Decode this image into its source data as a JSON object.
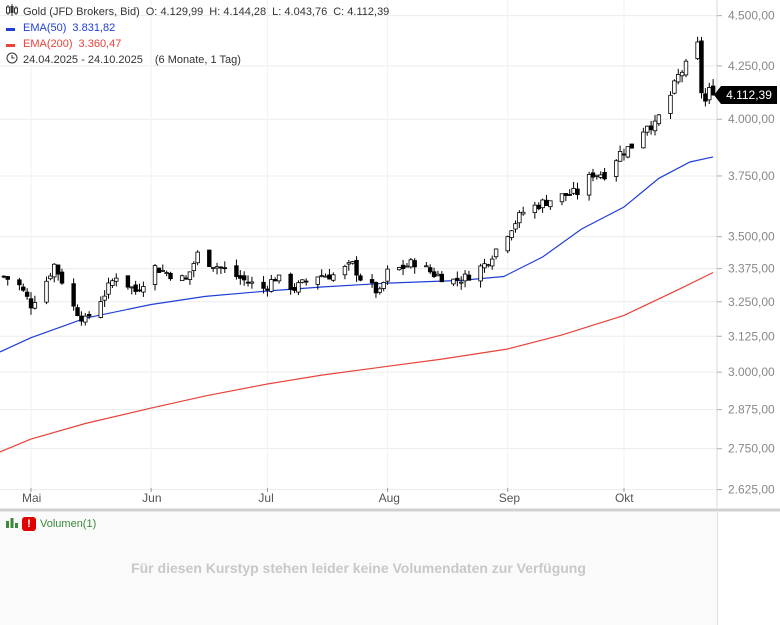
{
  "legend": {
    "instrument": "Gold (JFD Brokers, Bid)",
    "open_label": "O:",
    "open": "4.129,99",
    "high_label": "H:",
    "high": "4.144,28",
    "low_label": "L:",
    "low": "4.043,76",
    "close_label": "C:",
    "close": "4.112,39",
    "ema50_label": "EMA(50)",
    "ema50_value": "3.831,82",
    "ema200_label": "EMA(200)",
    "ema200_value": "3.360,47",
    "period": "24.04.2025 - 24.10.2025",
    "period_note": "(6 Monate, 1 Tag)"
  },
  "colors": {
    "ema50": "#1f3fd6",
    "ema200": "#e8433a",
    "candle": "#000000",
    "grid": "#ececec",
    "volume_green": "#3a8a3a"
  },
  "icons": {
    "candles": "candlestick-icon",
    "clock": "clock-icon",
    "volume": "bar-chart-icon",
    "warning": "exclamation-icon"
  },
  "last_price_badge": "4.112,39",
  "volume_pane": {
    "label": "Volumen(1)",
    "message": "Für diesen Kurstyp stehen leider keine Volumendaten zur Verfügung"
  },
  "chart_data": {
    "type": "candlestick",
    "y_scale": "log",
    "ylim": [
      2600,
      4560
    ],
    "xlim": [
      "2025-04-23",
      "2025-10-25"
    ],
    "y_ticks": [
      {
        "value": 4500,
        "label": "4.500,00"
      },
      {
        "value": 4250,
        "label": "4.250,00"
      },
      {
        "value": 4000,
        "label": "4.000,00"
      },
      {
        "value": 3750,
        "label": "3.750,00"
      },
      {
        "value": 3500,
        "label": "3.500,00"
      },
      {
        "value": 3375,
        "label": "3.375,00"
      },
      {
        "value": 3250,
        "label": "3.250,00"
      },
      {
        "value": 3125,
        "label": "3.125,00"
      },
      {
        "value": 3000,
        "label": "3.000,00"
      },
      {
        "value": 2875,
        "label": "2.875,00"
      },
      {
        "value": 2750,
        "label": "2.750,00"
      },
      {
        "value": 2625,
        "label": "2.625,00"
      }
    ],
    "x_ticks": [
      {
        "date": "2025-05-01",
        "label": "Mai"
      },
      {
        "date": "2025-06-01",
        "label": "Jun"
      },
      {
        "date": "2025-07-01",
        "label": "Jul"
      },
      {
        "date": "2025-08-01",
        "label": "Aug"
      },
      {
        "date": "2025-09-01",
        "label": "Sep"
      },
      {
        "date": "2025-10-01",
        "label": "Okt"
      }
    ],
    "close_keypoints": [
      [
        "2025-04-24",
        3345
      ],
      [
        "2025-04-28",
        3310
      ],
      [
        "2025-05-01",
        3240
      ],
      [
        "2025-05-05",
        3330
      ],
      [
        "2025-05-07",
        3390
      ],
      [
        "2025-05-09",
        3330
      ],
      [
        "2025-05-12",
        3230
      ],
      [
        "2025-05-15",
        3180
      ],
      [
        "2025-05-20",
        3280
      ],
      [
        "2025-05-23",
        3350
      ],
      [
        "2025-05-28",
        3290
      ],
      [
        "2025-06-02",
        3380
      ],
      [
        "2025-06-05",
        3360
      ],
      [
        "2025-06-10",
        3330
      ],
      [
        "2025-06-13",
        3430
      ],
      [
        "2025-06-16",
        3400
      ],
      [
        "2025-06-20",
        3370
      ],
      [
        "2025-06-25",
        3330
      ],
      [
        "2025-06-30",
        3300
      ],
      [
        "2025-07-03",
        3340
      ],
      [
        "2025-07-08",
        3300
      ],
      [
        "2025-07-14",
        3350
      ],
      [
        "2025-07-18",
        3350
      ],
      [
        "2025-07-23",
        3390
      ],
      [
        "2025-07-25",
        3340
      ],
      [
        "2025-07-30",
        3280
      ],
      [
        "2025-08-01",
        3360
      ],
      [
        "2025-08-05",
        3380
      ],
      [
        "2025-08-08",
        3400
      ],
      [
        "2025-08-13",
        3355
      ],
      [
        "2025-08-18",
        3330
      ],
      [
        "2025-08-21",
        3340
      ],
      [
        "2025-08-26",
        3390
      ],
      [
        "2025-08-29",
        3450
      ],
      [
        "2025-09-02",
        3540
      ],
      [
        "2025-09-05",
        3600
      ],
      [
        "2025-09-09",
        3630
      ],
      [
        "2025-09-12",
        3650
      ],
      [
        "2025-09-16",
        3670
      ],
      [
        "2025-09-19",
        3680
      ],
      [
        "2025-09-23",
        3760
      ],
      [
        "2025-09-26",
        3760
      ],
      [
        "2025-09-30",
        3850
      ],
      [
        "2025-10-03",
        3880
      ],
      [
        "2025-10-07",
        3980
      ],
      [
        "2025-10-09",
        3970
      ],
      [
        "2025-10-10",
        4010
      ],
      [
        "2025-10-13",
        4110
      ],
      [
        "2025-10-15",
        4200
      ],
      [
        "2025-10-17",
        4250
      ],
      [
        "2025-10-20",
        4350
      ],
      [
        "2025-10-21",
        4130
      ],
      [
        "2025-10-22",
        4080
      ],
      [
        "2025-10-23",
        4130
      ],
      [
        "2025-10-24",
        4112
      ]
    ],
    "series": [
      {
        "name": "EMA(50)",
        "color": "#1f3fd6",
        "points": [
          [
            "2025-04-23",
            3070
          ],
          [
            "2025-05-01",
            3120
          ],
          [
            "2025-05-15",
            3190
          ],
          [
            "2025-06-01",
            3240
          ],
          [
            "2025-06-15",
            3270
          ],
          [
            "2025-07-01",
            3290
          ],
          [
            "2025-07-15",
            3305
          ],
          [
            "2025-08-01",
            3320
          ],
          [
            "2025-08-20",
            3330
          ],
          [
            "2025-08-31",
            3345
          ],
          [
            "2025-09-10",
            3420
          ],
          [
            "2025-09-20",
            3530
          ],
          [
            "2025-10-01",
            3620
          ],
          [
            "2025-10-10",
            3740
          ],
          [
            "2025-10-18",
            3810
          ],
          [
            "2025-10-24",
            3832
          ]
        ]
      },
      {
        "name": "EMA(200)",
        "color": "#e8433a",
        "points": [
          [
            "2025-04-23",
            2740
          ],
          [
            "2025-05-01",
            2780
          ],
          [
            "2025-05-15",
            2830
          ],
          [
            "2025-06-01",
            2880
          ],
          [
            "2025-06-15",
            2920
          ],
          [
            "2025-07-01",
            2960
          ],
          [
            "2025-07-15",
            2990
          ],
          [
            "2025-08-01",
            3020
          ],
          [
            "2025-08-15",
            3045
          ],
          [
            "2025-09-01",
            3080
          ],
          [
            "2025-09-15",
            3130
          ],
          [
            "2025-10-01",
            3200
          ],
          [
            "2025-10-15",
            3295
          ],
          [
            "2025-10-24",
            3360
          ]
        ]
      }
    ]
  }
}
